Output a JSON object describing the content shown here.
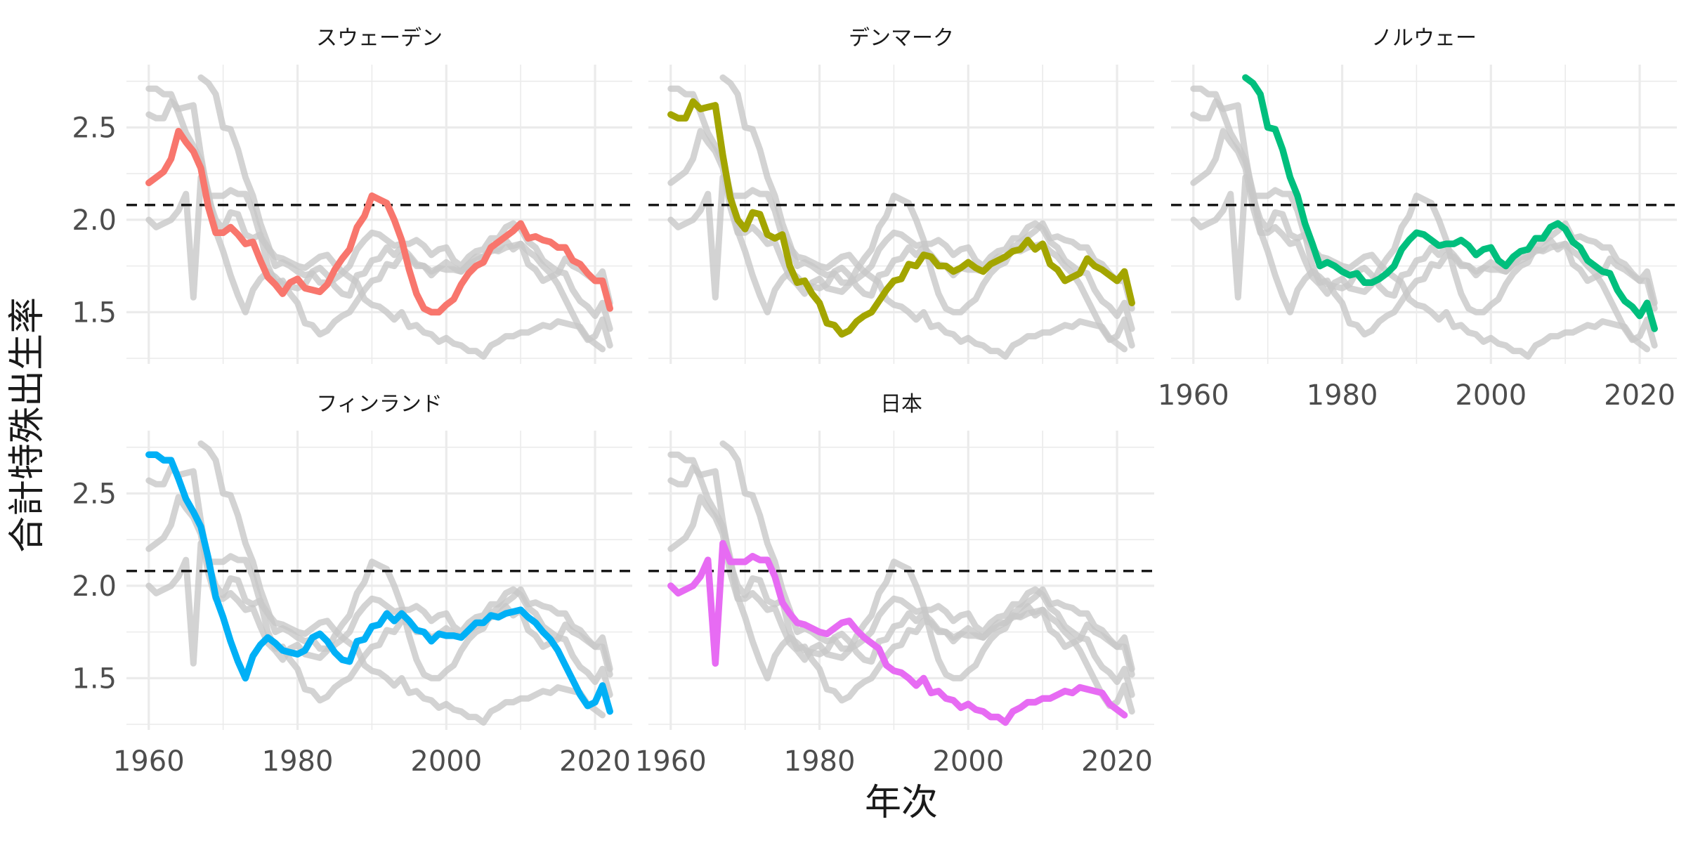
{
  "chart_data": {
    "type": "line",
    "layout": "faceted small multiples, 3 columns x 2 rows, shared axes",
    "xlabel": "年次",
    "ylabel": "合計特殊出生率",
    "xlim": [
      1957,
      2025
    ],
    "ylim": [
      1.22,
      2.84
    ],
    "x_ticks": [
      1960,
      1980,
      2000,
      2020
    ],
    "y_ticks": [
      1.5,
      2.0,
      2.5
    ],
    "x_minor_ticks": [
      1970,
      1990,
      2010
    ],
    "y_minor_ticks": [
      1.25,
      1.75,
      2.25,
      2.75
    ],
    "grid": true,
    "legend": "none",
    "reference_line": {
      "y": 2.08,
      "style": "dashed",
      "color": "#000000"
    },
    "x_tick_rows": [
      "bottom",
      "top"
    ],
    "background_series_style": "all countries drawn in light gray behind each panel",
    "series": [
      {
        "name": "スウェーデン",
        "color": "#F8766D",
        "x": [
          1960,
          1961,
          1962,
          1963,
          1964,
          1965,
          1966,
          1967,
          1968,
          1969,
          1970,
          1971,
          1972,
          1973,
          1974,
          1975,
          1976,
          1977,
          1978,
          1979,
          1980,
          1981,
          1982,
          1983,
          1984,
          1985,
          1986,
          1987,
          1988,
          1989,
          1990,
          1991,
          1992,
          1993,
          1994,
          1995,
          1996,
          1997,
          1998,
          1999,
          2000,
          2001,
          2002,
          2003,
          2004,
          2005,
          2006,
          2007,
          2008,
          2009,
          2010,
          2011,
          2012,
          2013,
          2014,
          2015,
          2016,
          2017,
          2018,
          2019,
          2020,
          2021,
          2022
        ],
        "values": [
          2.2,
          2.23,
          2.26,
          2.33,
          2.48,
          2.42,
          2.37,
          2.28,
          2.07,
          1.93,
          1.93,
          1.96,
          1.92,
          1.87,
          1.88,
          1.78,
          1.69,
          1.65,
          1.6,
          1.66,
          1.68,
          1.63,
          1.62,
          1.61,
          1.65,
          1.73,
          1.79,
          1.84,
          1.96,
          2.02,
          2.13,
          2.11,
          2.09,
          2.0,
          1.89,
          1.73,
          1.6,
          1.52,
          1.5,
          1.5,
          1.54,
          1.57,
          1.65,
          1.71,
          1.75,
          1.77,
          1.85,
          1.88,
          1.91,
          1.94,
          1.98,
          1.9,
          1.91,
          1.89,
          1.88,
          1.85,
          1.85,
          1.78,
          1.76,
          1.71,
          1.67,
          1.67,
          1.52
        ]
      },
      {
        "name": "デンマーク",
        "color": "#A3A500",
        "x": [
          1960,
          1961,
          1962,
          1963,
          1964,
          1965,
          1966,
          1967,
          1968,
          1969,
          1970,
          1971,
          1972,
          1973,
          1974,
          1975,
          1976,
          1977,
          1978,
          1979,
          1980,
          1981,
          1982,
          1983,
          1984,
          1985,
          1986,
          1987,
          1988,
          1989,
          1990,
          1991,
          1992,
          1993,
          1994,
          1995,
          1996,
          1997,
          1998,
          1999,
          2000,
          2001,
          2002,
          2003,
          2004,
          2005,
          2006,
          2007,
          2008,
          2009,
          2010,
          2011,
          2012,
          2013,
          2014,
          2015,
          2016,
          2017,
          2018,
          2019,
          2020,
          2021,
          2022
        ],
        "values": [
          2.57,
          2.55,
          2.55,
          2.64,
          2.6,
          2.61,
          2.62,
          2.35,
          2.12,
          2.0,
          1.95,
          2.04,
          2.03,
          1.92,
          1.9,
          1.92,
          1.75,
          1.66,
          1.67,
          1.6,
          1.55,
          1.44,
          1.43,
          1.38,
          1.4,
          1.45,
          1.48,
          1.5,
          1.56,
          1.62,
          1.67,
          1.68,
          1.76,
          1.75,
          1.81,
          1.8,
          1.75,
          1.75,
          1.72,
          1.74,
          1.77,
          1.74,
          1.72,
          1.76,
          1.78,
          1.8,
          1.83,
          1.84,
          1.89,
          1.84,
          1.87,
          1.76,
          1.73,
          1.67,
          1.69,
          1.71,
          1.79,
          1.75,
          1.73,
          1.7,
          1.67,
          1.72,
          1.55
        ]
      },
      {
        "name": "ノルウェー",
        "color": "#00BF7D",
        "x": [
          1967,
          1968,
          1969,
          1970,
          1971,
          1972,
          1973,
          1974,
          1975,
          1976,
          1977,
          1978,
          1979,
          1980,
          1981,
          1982,
          1983,
          1984,
          1985,
          1986,
          1987,
          1988,
          1989,
          1990,
          1991,
          1992,
          1993,
          1994,
          1995,
          1996,
          1997,
          1998,
          1999,
          2000,
          2001,
          2002,
          2003,
          2004,
          2005,
          2006,
          2007,
          2008,
          2009,
          2010,
          2011,
          2012,
          2013,
          2014,
          2015,
          2016,
          2017,
          2018,
          2019,
          2020,
          2021,
          2022
        ],
        "values": [
          2.77,
          2.74,
          2.68,
          2.5,
          2.49,
          2.38,
          2.23,
          2.13,
          1.98,
          1.87,
          1.75,
          1.77,
          1.75,
          1.72,
          1.7,
          1.71,
          1.66,
          1.66,
          1.68,
          1.71,
          1.75,
          1.84,
          1.89,
          1.93,
          1.92,
          1.89,
          1.86,
          1.87,
          1.87,
          1.89,
          1.86,
          1.81,
          1.84,
          1.85,
          1.78,
          1.75,
          1.8,
          1.83,
          1.84,
          1.9,
          1.9,
          1.96,
          1.98,
          1.95,
          1.88,
          1.85,
          1.78,
          1.75,
          1.72,
          1.71,
          1.62,
          1.56,
          1.53,
          1.48,
          1.55,
          1.41
        ]
      },
      {
        "name": "フィンランド",
        "color": "#00B0F6",
        "x": [
          1960,
          1961,
          1962,
          1963,
          1964,
          1965,
          1966,
          1967,
          1968,
          1969,
          1970,
          1971,
          1972,
          1973,
          1974,
          1975,
          1976,
          1977,
          1978,
          1979,
          1980,
          1981,
          1982,
          1983,
          1984,
          1985,
          1986,
          1987,
          1988,
          1989,
          1990,
          1991,
          1992,
          1993,
          1994,
          1995,
          1996,
          1997,
          1998,
          1999,
          2000,
          2001,
          2002,
          2003,
          2004,
          2005,
          2006,
          2007,
          2008,
          2009,
          2010,
          2011,
          2012,
          2013,
          2014,
          2015,
          2016,
          2017,
          2018,
          2019,
          2020,
          2021,
          2022
        ],
        "values": [
          2.71,
          2.71,
          2.68,
          2.68,
          2.58,
          2.47,
          2.4,
          2.32,
          2.15,
          1.94,
          1.83,
          1.7,
          1.59,
          1.5,
          1.62,
          1.68,
          1.72,
          1.69,
          1.65,
          1.64,
          1.63,
          1.65,
          1.72,
          1.74,
          1.7,
          1.64,
          1.6,
          1.59,
          1.7,
          1.71,
          1.78,
          1.79,
          1.85,
          1.81,
          1.85,
          1.81,
          1.76,
          1.75,
          1.7,
          1.74,
          1.73,
          1.73,
          1.72,
          1.76,
          1.8,
          1.8,
          1.84,
          1.83,
          1.85,
          1.86,
          1.87,
          1.83,
          1.8,
          1.75,
          1.71,
          1.65,
          1.57,
          1.49,
          1.41,
          1.35,
          1.37,
          1.46,
          1.32
        ]
      },
      {
        "name": "日本",
        "color": "#E76BF3",
        "x": [
          1960,
          1961,
          1962,
          1963,
          1964,
          1965,
          1966,
          1967,
          1968,
          1969,
          1970,
          1971,
          1972,
          1973,
          1974,
          1975,
          1976,
          1977,
          1978,
          1979,
          1980,
          1981,
          1982,
          1983,
          1984,
          1985,
          1986,
          1987,
          1988,
          1989,
          1990,
          1991,
          1992,
          1993,
          1994,
          1995,
          1996,
          1997,
          1998,
          1999,
          2000,
          2001,
          2002,
          2003,
          2004,
          2005,
          2006,
          2007,
          2008,
          2009,
          2010,
          2011,
          2012,
          2013,
          2014,
          2015,
          2016,
          2017,
          2018,
          2019,
          2020,
          2021
        ],
        "values": [
          2.0,
          1.96,
          1.98,
          2.0,
          2.05,
          2.14,
          1.58,
          2.23,
          2.13,
          2.13,
          2.13,
          2.16,
          2.14,
          2.14,
          2.05,
          1.91,
          1.85,
          1.8,
          1.79,
          1.77,
          1.75,
          1.74,
          1.77,
          1.8,
          1.81,
          1.76,
          1.72,
          1.69,
          1.66,
          1.57,
          1.54,
          1.53,
          1.5,
          1.46,
          1.5,
          1.42,
          1.43,
          1.39,
          1.38,
          1.34,
          1.36,
          1.33,
          1.32,
          1.29,
          1.29,
          1.26,
          1.32,
          1.34,
          1.37,
          1.37,
          1.39,
          1.39,
          1.41,
          1.43,
          1.42,
          1.45,
          1.44,
          1.43,
          1.42,
          1.36,
          1.33,
          1.3
        ]
      }
    ],
    "panel_order": [
      "スウェーデン",
      "デンマーク",
      "ノルウェー",
      "フィンランド",
      "日本"
    ]
  }
}
